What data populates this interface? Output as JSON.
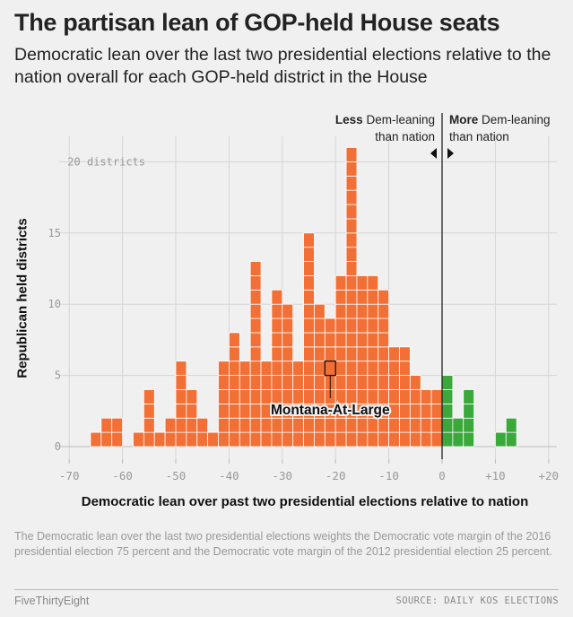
{
  "header": {
    "title": "The partisan lean of GOP-held House seats",
    "subtitle": "Democratic lean over the last two presidential elections relative to the nation overall for each GOP-held district in the House"
  },
  "chart_data": {
    "type": "bar",
    "xlabel": "Democratic lean over past two presidential elections relative to nation",
    "ylabel": "Republican held districts",
    "xlim": [
      -72,
      22
    ],
    "ylim": [
      0,
      21.5
    ],
    "x_ticks": [
      -70,
      -60,
      -50,
      -40,
      -30,
      -20,
      -10,
      0,
      10,
      20
    ],
    "x_tick_labels": [
      "-70",
      "-60",
      "-50",
      "-40",
      "-30",
      "-20",
      "-10",
      "0",
      "+10",
      "+20"
    ],
    "y_ticks": [
      0,
      5,
      10,
      15,
      20
    ],
    "y_tick_labels": [
      "0",
      "5",
      "10",
      "15",
      "20 districts"
    ],
    "bin_width": 2,
    "colors": {
      "less_dem": "#f26f35",
      "more_dem": "#3aa83a",
      "grid": "#d5d5d5",
      "zero_line": "#222222"
    },
    "series": [
      {
        "name": "Less Dem-leaning than nation",
        "bins": [
          {
            "x": -65,
            "count": 1
          },
          {
            "x": -63,
            "count": 2
          },
          {
            "x": -61,
            "count": 2
          },
          {
            "x": -57,
            "count": 1
          },
          {
            "x": -55,
            "count": 4
          },
          {
            "x": -53,
            "count": 1
          },
          {
            "x": -51,
            "count": 2
          },
          {
            "x": -49,
            "count": 6
          },
          {
            "x": -47,
            "count": 4
          },
          {
            "x": -45,
            "count": 2
          },
          {
            "x": -43,
            "count": 1
          },
          {
            "x": -41,
            "count": 6
          },
          {
            "x": -39,
            "count": 8
          },
          {
            "x": -37,
            "count": 6
          },
          {
            "x": -35,
            "count": 13
          },
          {
            "x": -33,
            "count": 6
          },
          {
            "x": -31,
            "count": 11
          },
          {
            "x": -29,
            "count": 10
          },
          {
            "x": -27,
            "count": 6
          },
          {
            "x": -25,
            "count": 15
          },
          {
            "x": -23,
            "count": 10
          },
          {
            "x": -21,
            "count": 9
          },
          {
            "x": -19,
            "count": 12
          },
          {
            "x": -17,
            "count": 21
          },
          {
            "x": -15,
            "count": 12
          },
          {
            "x": -13,
            "count": 12
          },
          {
            "x": -11,
            "count": 11
          },
          {
            "x": -9,
            "count": 7
          },
          {
            "x": -7,
            "count": 7
          },
          {
            "x": -5,
            "count": 5
          },
          {
            "x": -3,
            "count": 4
          },
          {
            "x": -1,
            "count": 4
          }
        ]
      },
      {
        "name": "More Dem-leaning than nation",
        "bins": [
          {
            "x": 1,
            "count": 5
          },
          {
            "x": 3,
            "count": 2
          },
          {
            "x": 5,
            "count": 4
          },
          {
            "x": 11,
            "count": 1
          },
          {
            "x": 13,
            "count": 2
          }
        ]
      }
    ],
    "highlight": {
      "label": "Montana-At-Large",
      "x": -21,
      "level": 6
    },
    "annotations": {
      "left": {
        "bold": "Less",
        "line1": " Dem-leaning",
        "line2": "than nation"
      },
      "right": {
        "bold": "More",
        "line1": " Dem-leaning",
        "line2": "than nation"
      }
    }
  },
  "note": "The Democratic lean over the last two presidential elections weights the Democratic vote margin of the 2016 presidential election 75 percent and the Democratic vote margin of the 2012 presidential election 25 percent.",
  "footer": {
    "brand": "FiveThirtyEight",
    "source": "SOURCE: DAILY KOS ELECTIONS"
  }
}
